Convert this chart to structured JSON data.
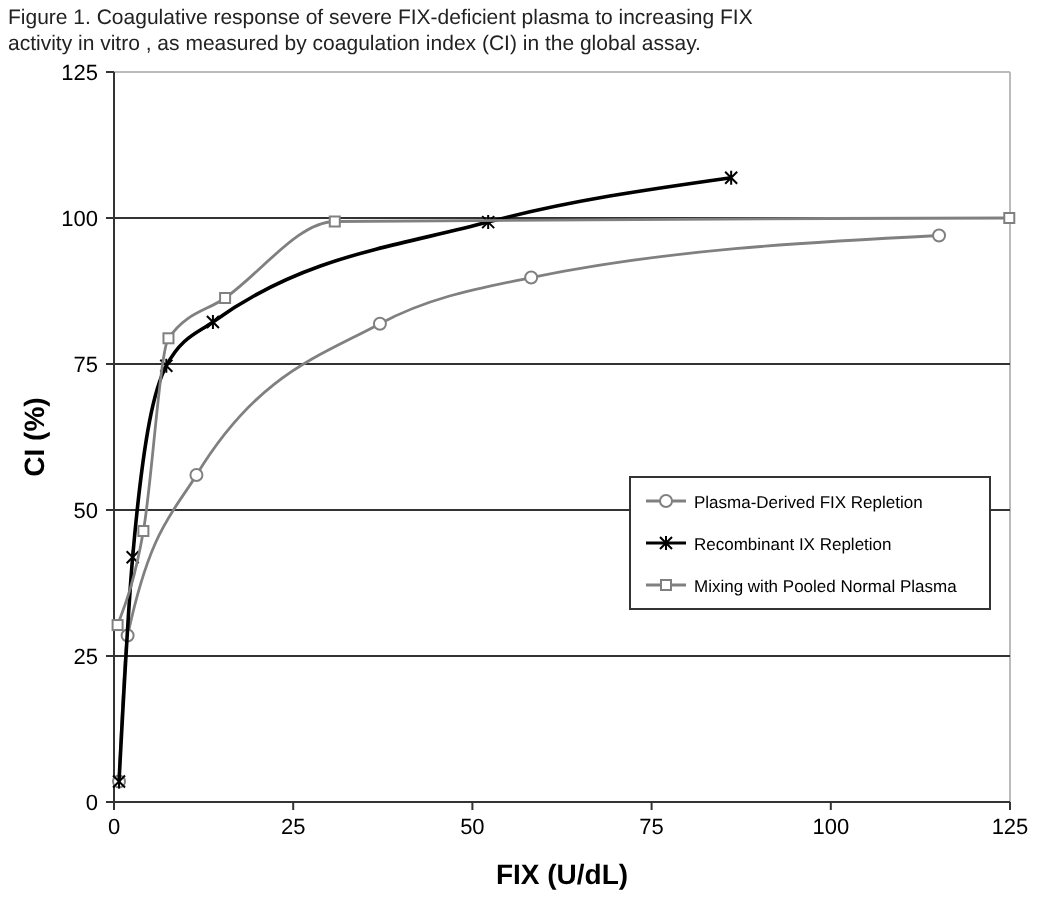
{
  "chart_data": {
    "type": "line",
    "title": "Figure 1. Coagulative response of severe FIX-deficient plasma to increasing FIX activity in vitro , as measured by coagulation index (CI) in the global assay.",
    "xlabel": "FIX (U/dL)",
    "ylabel": "CI (%)",
    "xlim": [
      0,
      125
    ],
    "ylim": [
      0,
      125
    ],
    "xticks": [
      0,
      25,
      50,
      75,
      100,
      125
    ],
    "yticks": [
      0,
      25,
      50,
      75,
      100,
      125
    ],
    "grid": "y",
    "legend": "right",
    "series": [
      {
        "name": "Plasma-Derived FIX Repletion",
        "color": "#808080",
        "marker": "circle",
        "x": [
          0.7,
          1.9,
          3.5,
          11.5,
          37.1,
          58.2,
          115.1
        ],
        "values": [
          3.5,
          28.5,
          null,
          56,
          81.9,
          89.8,
          97
        ]
      },
      {
        "name": "Recombinant IX Repletion",
        "color": "#000000",
        "marker": "cross",
        "x": [
          0.7,
          2.6,
          4.3,
          7.3,
          13.8,
          52.2,
          86.1
        ],
        "values": [
          3.5,
          41.9,
          null,
          74.7,
          82.2,
          99.3,
          106.9
        ]
      },
      {
        "name": "Mixing with Pooled Normal Plasma",
        "color": "#808080",
        "marker": "square",
        "x": [
          0.5,
          4.1,
          7.6,
          15.5,
          30.8,
          124.9
        ],
        "values": [
          30.3,
          46.4,
          79.4,
          86.3,
          99.4,
          100
        ]
      }
    ]
  }
}
